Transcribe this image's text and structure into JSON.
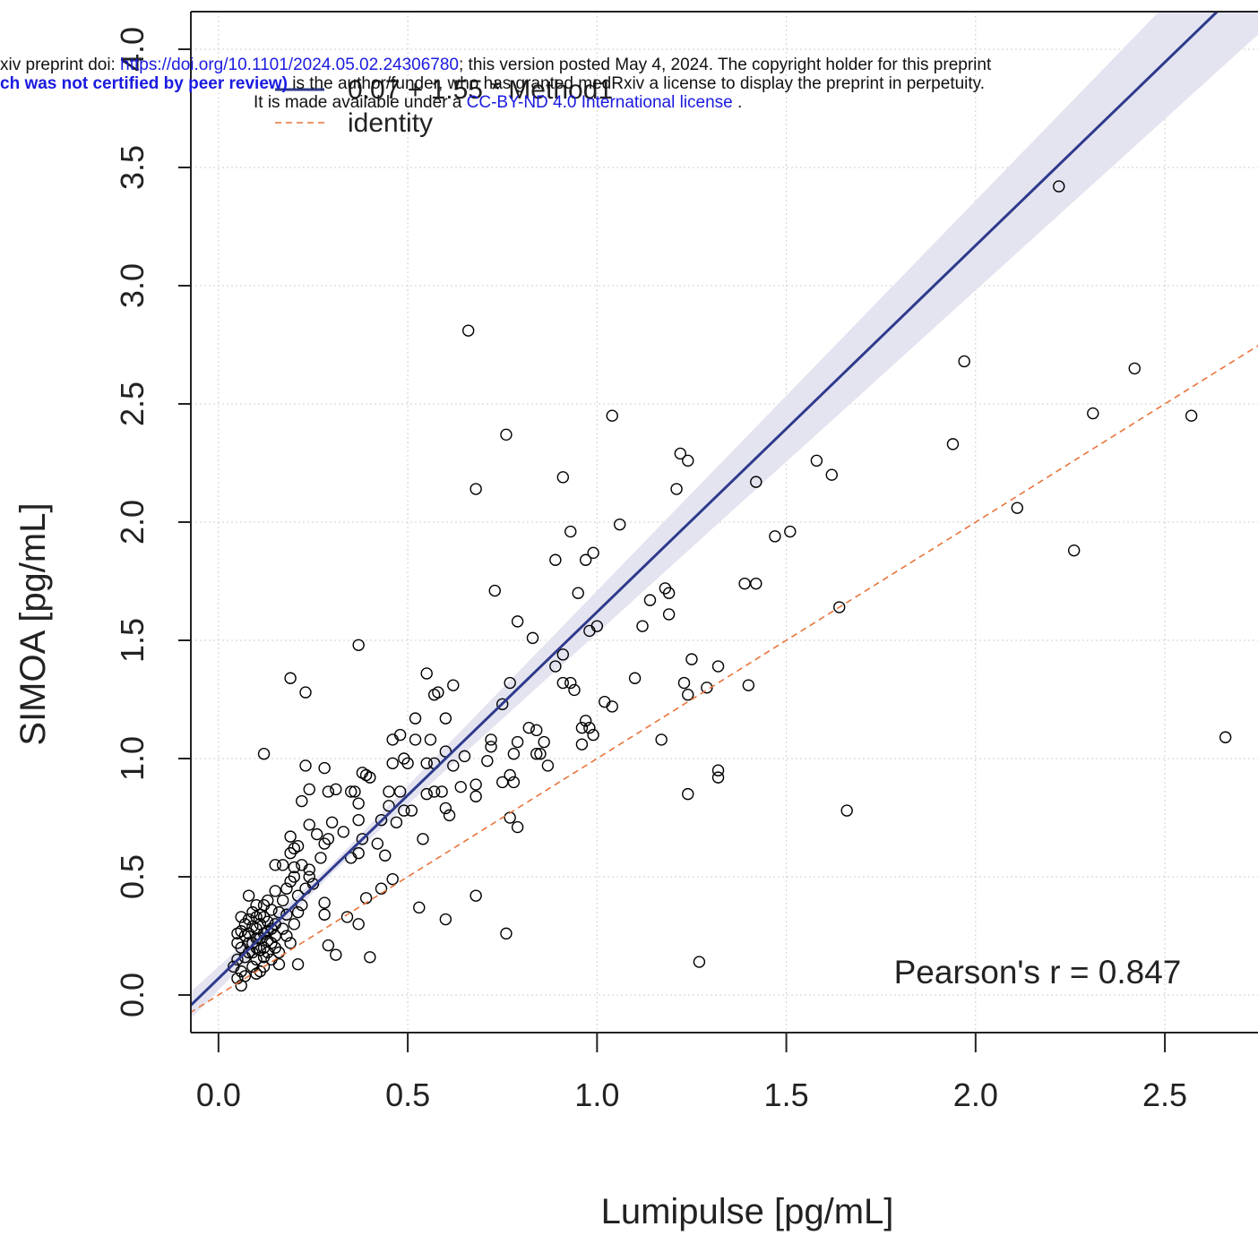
{
  "chart_data": {
    "type": "scatter",
    "xlabel": "Lumipulse [pg/mL]",
    "ylabel": "SIMOA [pg/mL]",
    "annotation": "Pearson's r = 0.847",
    "xlim": [
      -0.073,
      2.746
    ],
    "ylim": [
      -0.159,
      4.159
    ],
    "xticks": [
      {
        "value": 0,
        "label": "0.0"
      },
      {
        "value": 0.5,
        "label": "0.5"
      },
      {
        "value": 1,
        "label": "1.0"
      },
      {
        "value": 1.5,
        "label": "1.5"
      },
      {
        "value": 2,
        "label": "2.0"
      },
      {
        "value": 2.5,
        "label": "2.5"
      }
    ],
    "yticks": [
      {
        "value": 0,
        "label": "0.0"
      },
      {
        "value": 0.5,
        "label": "0.5"
      },
      {
        "value": 1,
        "label": "1.0"
      },
      {
        "value": 1.5,
        "label": "1.5"
      },
      {
        "value": 2,
        "label": "2.0"
      },
      {
        "value": 2.5,
        "label": "2.5"
      },
      {
        "value": 3,
        "label": "3.0"
      },
      {
        "value": 3.5,
        "label": "3.5"
      },
      {
        "value": 4,
        "label": "4.0"
      }
    ],
    "grid": true,
    "band": {
      "color": "#e4e4f1",
      "x": [
        -0.1,
        0.3,
        1.0,
        1.5,
        2.0,
        2.5,
        3.0
      ],
      "lower": [
        -0.145,
        0.515,
        1.53,
        2.255,
        2.98,
        3.705,
        4.43
      ],
      "upper": [
        -0.025,
        0.555,
        1.71,
        2.535,
        3.36,
        4.185,
        5.01
      ]
    },
    "series": [
      {
        "color": "#000000",
        "x": [
          0.66,
          2.22,
          1.97,
          2.42,
          2.57,
          2.31,
          1.94,
          2.66,
          2.11,
          2.26,
          1.04,
          0.76,
          1.22,
          1.24,
          0.91,
          0.68,
          1.21,
          1.58,
          1.62,
          1.42,
          1.06,
          0.93,
          1.47,
          1.51,
          0.89,
          0.99,
          0.97,
          0.73,
          0.95,
          1.18,
          1.19,
          1.14,
          1.39,
          1.42,
          1.64,
          1.19,
          0.79,
          1.0,
          0.98,
          1.12,
          0.83,
          0.37,
          0.91,
          1.25,
          0.19,
          0.55,
          0.89,
          1.32,
          1.1,
          0.23,
          0.57,
          0.58,
          0.62,
          0.77,
          0.91,
          0.93,
          0.94,
          1.23,
          1.24,
          1.29,
          1.4,
          1.02,
          1.04,
          0.75,
          0.52,
          0.6,
          0.97,
          0.96,
          0.98,
          0.99,
          0.82,
          0.84,
          1.17,
          0.12,
          0.46,
          0.48,
          0.52,
          0.56,
          0.72,
          0.79,
          0.86,
          0.96,
          0.6,
          0.72,
          0.65,
          0.78,
          0.84,
          0.85,
          0.49,
          0.46,
          0.5,
          0.55,
          0.57,
          0.62,
          0.71,
          0.87,
          0.23,
          0.28,
          0.38,
          0.39,
          0.4,
          1.32,
          1.32,
          0.77,
          0.75,
          0.78,
          0.68,
          0.64,
          0.24,
          0.29,
          0.31,
          0.36,
          0.45,
          0.48,
          0.55,
          0.57,
          0.59,
          0.68,
          1.24,
          0.22,
          0.35,
          0.37,
          0.45,
          0.6,
          0.61,
          0.49,
          0.51,
          1.66,
          0.77,
          0.79,
          0.3,
          0.24,
          0.37,
          0.43,
          0.47,
          0.33,
          0.26,
          0.19,
          0.29,
          0.38,
          0.42,
          0.54,
          0.21,
          0.28,
          0.37,
          0.44,
          0.35,
          0.27,
          0.15,
          0.2,
          0.24,
          0.43,
          0.46,
          0.39,
          0.68,
          0.53,
          0.6,
          0.28,
          0.28,
          0.34,
          0.37,
          0.76,
          0.29,
          0.31,
          0.4,
          1.27,
          0.21,
          0.05,
          0.06,
          0.07,
          0.08,
          0.09,
          0.1,
          0.11,
          0.12,
          0.08,
          0.09,
          0.1,
          0.06,
          0.05,
          0.07,
          0.06,
          0.11,
          0.12,
          0.13,
          0.14,
          0.15,
          0.16,
          0.09,
          0.1,
          0.08,
          0.13,
          0.14,
          0.17,
          0.18,
          0.15,
          0.19,
          0.2,
          0.17,
          0.18,
          0.2,
          0.21,
          0.22,
          0.19,
          0.16,
          0.14,
          0.12,
          0.11,
          0.13,
          0.07,
          0.06,
          0.05,
          0.04,
          0.08,
          0.1,
          0.12,
          0.09,
          0.11,
          0.13,
          0.15,
          0.07,
          0.1,
          0.16,
          0.18,
          0.21,
          0.23,
          0.24,
          0.22,
          0.25,
          0.19,
          0.2,
          0.17,
          0.15,
          0.14,
          0.08,
          0.09,
          0.11,
          0.12,
          0.1,
          0.13,
          0.06,
          0.05,
          0.1,
          0.12
        ],
        "values": [
          2.81,
          3.42,
          2.68,
          2.65,
          2.45,
          2.46,
          2.33,
          1.09,
          2.06,
          1.88,
          2.45,
          2.37,
          2.29,
          2.26,
          2.19,
          2.14,
          2.14,
          2.26,
          2.2,
          2.17,
          1.99,
          1.96,
          1.94,
          1.96,
          1.84,
          1.87,
          1.84,
          1.71,
          1.7,
          1.72,
          1.7,
          1.67,
          1.74,
          1.74,
          1.64,
          1.61,
          1.58,
          1.56,
          1.54,
          1.56,
          1.51,
          1.48,
          1.44,
          1.42,
          1.34,
          1.36,
          1.39,
          1.39,
          1.34,
          1.28,
          1.27,
          1.28,
          1.31,
          1.32,
          1.32,
          1.32,
          1.29,
          1.32,
          1.27,
          1.3,
          1.31,
          1.24,
          1.22,
          1.23,
          1.17,
          1.17,
          1.16,
          1.13,
          1.13,
          1.1,
          1.13,
          1.12,
          1.08,
          1.02,
          1.08,
          1.1,
          1.08,
          1.08,
          1.08,
          1.07,
          1.07,
          1.06,
          1.03,
          1.05,
          1.01,
          1.02,
          1.02,
          1.02,
          1.0,
          0.98,
          0.98,
          0.98,
          0.98,
          0.97,
          0.99,
          0.97,
          0.97,
          0.96,
          0.94,
          0.93,
          0.92,
          0.95,
          0.92,
          0.93,
          0.9,
          0.9,
          0.89,
          0.88,
          0.87,
          0.86,
          0.87,
          0.86,
          0.86,
          0.86,
          0.85,
          0.86,
          0.86,
          0.84,
          0.85,
          0.82,
          0.86,
          0.81,
          0.8,
          0.79,
          0.76,
          0.78,
          0.78,
          0.78,
          0.75,
          0.71,
          0.73,
          0.72,
          0.74,
          0.74,
          0.73,
          0.69,
          0.68,
          0.67,
          0.66,
          0.66,
          0.64,
          0.66,
          0.63,
          0.64,
          0.6,
          0.59,
          0.58,
          0.58,
          0.55,
          0.54,
          0.53,
          0.45,
          0.49,
          0.41,
          0.42,
          0.37,
          0.32,
          0.39,
          0.34,
          0.33,
          0.3,
          0.26,
          0.21,
          0.17,
          0.16,
          0.14,
          0.13,
          0.15,
          0.2,
          0.25,
          0.18,
          0.22,
          0.28,
          0.3,
          0.2,
          0.32,
          0.12,
          0.15,
          0.1,
          0.07,
          0.08,
          0.04,
          0.24,
          0.33,
          0.27,
          0.22,
          0.3,
          0.35,
          0.35,
          0.38,
          0.42,
          0.4,
          0.36,
          0.4,
          0.45,
          0.44,
          0.48,
          0.5,
          0.28,
          0.25,
          0.3,
          0.35,
          0.38,
          0.22,
          0.18,
          0.15,
          0.12,
          0.1,
          0.18,
          0.3,
          0.27,
          0.22,
          0.12,
          0.26,
          0.2,
          0.26,
          0.29,
          0.34,
          0.31,
          0.25,
          0.16,
          0.09,
          0.13,
          0.34,
          0.42,
          0.45,
          0.5,
          0.55,
          0.47,
          0.6,
          0.62,
          0.55,
          0.2,
          0.28,
          0.22,
          0.18,
          0.19,
          0.16,
          0.24,
          0.23,
          0.33,
          0.26,
          0.33,
          0.38
        ]
      },
      {
        "name": "0.07 + 1.55 * Method1",
        "type": "line",
        "color": "#2e3a8c",
        "x": [
          -0.1,
          3.0
        ],
        "values": [
          -0.085,
          4.72
        ]
      },
      {
        "name": "identity",
        "type": "line",
        "dashed": true,
        "color": "#e8743b",
        "x": [
          -0.1,
          3.0
        ],
        "values": [
          -0.1,
          3.0
        ]
      }
    ]
  },
  "banner": {
    "line1_prefix": "xiv preprint doi: ",
    "line1_link": "https://doi.org/10.1101/2024.05.02.24306780",
    "line1_suffix": "; this version posted May 4, 2024. The copyright holder for this preprint",
    "line2_bold": "ch was not certified by peer review)",
    "line2_rest": " is the author/funder, who has granted medRxiv a license to display the preprint in perpetuity.",
    "line3_prefix": "It is made available under a ",
    "line3_link": "CC-BY-ND 4.0 International license",
    "line3_suffix": " ."
  }
}
